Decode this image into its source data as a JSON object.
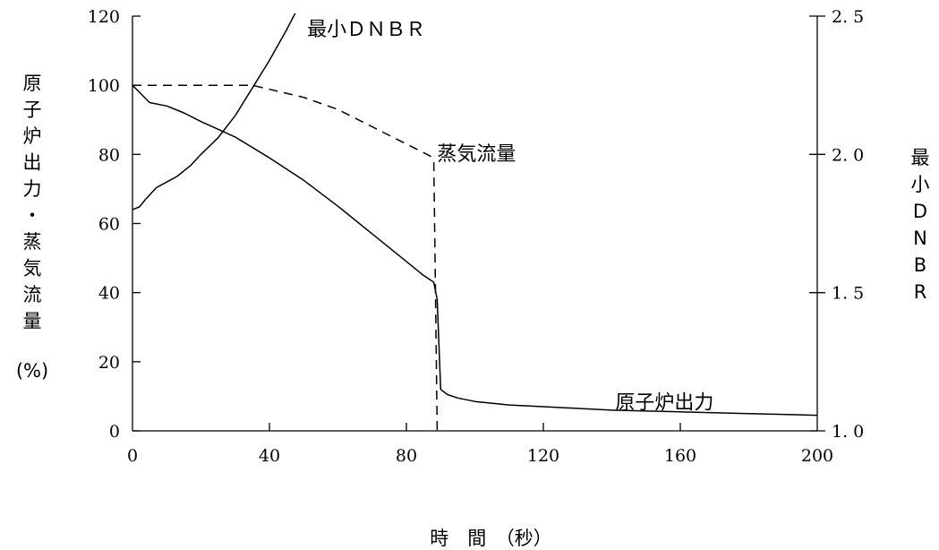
{
  "chart_data": {
    "type": "line",
    "xlabel": "時　間　（秒）",
    "ylabel_left": [
      "原",
      "子",
      "炉",
      "出",
      "力",
      "・",
      "蒸",
      "気",
      "流",
      "量"
    ],
    "ylabel_left_unit": "(%)",
    "ylabel_right": [
      "最",
      "小",
      "D",
      "N",
      "B",
      "R"
    ],
    "xlim": [
      0,
      200
    ],
    "ylim_left": [
      0,
      120
    ],
    "ylim_right": [
      1.0,
      2.5
    ],
    "x_ticks": [
      0,
      40,
      80,
      120,
      160,
      200
    ],
    "x_tick_labels": [
      "0",
      "40",
      "80",
      "120",
      "160",
      "200"
    ],
    "y_left_ticks": [
      0,
      20,
      40,
      60,
      80,
      100,
      120
    ],
    "y_left_tick_labels": [
      "0",
      "20",
      "40",
      "60",
      "80",
      "100",
      "120"
    ],
    "y_right_ticks": [
      1.0,
      1.5,
      2.0,
      2.5
    ],
    "y_right_tick_labels": [
      "1. 0",
      "1. 5",
      "2. 0",
      "2. 5"
    ],
    "grid": false,
    "series": [
      {
        "name": "原子炉出力",
        "axis": "left",
        "style": "solid",
        "x": [
          0,
          2,
          5,
          10,
          15,
          20,
          30,
          40,
          50,
          60,
          70,
          80,
          85,
          88,
          89,
          90,
          92,
          95,
          100,
          110,
          120,
          140,
          160,
          180,
          200
        ],
        "y": [
          100,
          98,
          95,
          94,
          92,
          89.5,
          85,
          79,
          72.5,
          65,
          57,
          49,
          45,
          43,
          38,
          12,
          10.5,
          9.5,
          8.5,
          7.5,
          7,
          6,
          5.5,
          5,
          4.5
        ]
      },
      {
        "name": "蒸気流量",
        "axis": "left",
        "style": "dashed",
        "x": [
          0,
          1,
          5,
          20,
          35,
          50,
          60,
          70,
          80,
          87,
          88,
          88.5,
          89
        ],
        "y": [
          100,
          100,
          100,
          100,
          100,
          96.5,
          93,
          88,
          83,
          79.5,
          78,
          40,
          0
        ]
      },
      {
        "name": "最小ＤＮＢＲ",
        "axis": "right",
        "style": "solid",
        "x": [
          0,
          2,
          4,
          7,
          10,
          13,
          17,
          20,
          25,
          30,
          35,
          40,
          45,
          47.5
        ],
        "y": [
          1.8,
          1.81,
          1.84,
          1.88,
          1.9,
          1.92,
          1.96,
          2.0,
          2.06,
          2.14,
          2.24,
          2.34,
          2.45,
          2.51
        ]
      }
    ],
    "annotations": [
      {
        "text": "最小ＤＮＢＲ",
        "x": 51,
        "y": 120,
        "axis": "left"
      },
      {
        "text": "蒸気流量",
        "x": 89,
        "y": 84,
        "axis": "left"
      },
      {
        "text": "原子炉出力",
        "x": 141,
        "y": 12,
        "axis": "left"
      }
    ]
  }
}
